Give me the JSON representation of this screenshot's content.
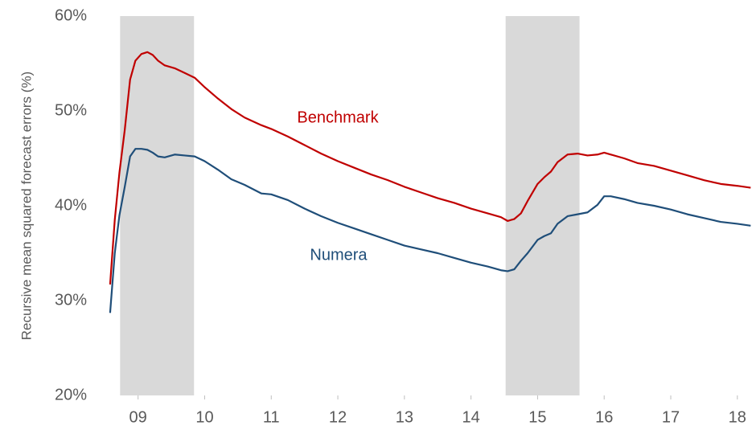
{
  "chart_data": {
    "type": "line",
    "y_label": "Recursive mean squared forecast errors (%)",
    "x": [
      8.58,
      8.65,
      8.72,
      8.8,
      8.88,
      8.96,
      9.05,
      9.14,
      9.22,
      9.3,
      9.4,
      9.55,
      9.7,
      9.85,
      10.0,
      10.2,
      10.4,
      10.6,
      10.85,
      11.0,
      11.25,
      11.5,
      11.75,
      12.0,
      12.25,
      12.5,
      12.75,
      13.0,
      13.25,
      13.5,
      13.75,
      14.0,
      14.25,
      14.45,
      14.55,
      14.65,
      14.75,
      14.85,
      15.0,
      15.1,
      15.2,
      15.3,
      15.45,
      15.6,
      15.75,
      15.9,
      16.0,
      16.1,
      16.3,
      16.5,
      16.75,
      17.0,
      17.25,
      17.5,
      17.75,
      18.0,
      18.2
    ],
    "series": [
      {
        "name": "Benchmark",
        "color": "#c00000",
        "values": [
          31.7,
          38.5,
          43.5,
          48,
          53.3,
          55.3,
          56,
          56.2,
          55.9,
          55.3,
          54.8,
          54.5,
          54,
          53.5,
          52.5,
          51.3,
          50.2,
          49.3,
          48.5,
          48.1,
          47.3,
          46.4,
          45.5,
          44.7,
          44,
          43.3,
          42.7,
          42,
          41.4,
          40.8,
          40.3,
          39.7,
          39.2,
          38.8,
          38.4,
          38.6,
          39.2,
          40.5,
          42.3,
          43,
          43.6,
          44.6,
          45.4,
          45.5,
          45.3,
          45.4,
          45.6,
          45.4,
          45,
          44.5,
          44.2,
          43.7,
          43.2,
          42.7,
          42.3,
          42.1,
          41.9
        ]
      },
      {
        "name": "Numera",
        "color": "#1f4e79",
        "values": [
          28.7,
          35,
          39,
          42,
          45.2,
          46,
          46,
          45.9,
          45.6,
          45.2,
          45.1,
          45.4,
          45.3,
          45.2,
          44.7,
          43.8,
          42.8,
          42.2,
          41.3,
          41.2,
          40.6,
          39.7,
          38.9,
          38.2,
          37.6,
          37,
          36.4,
          35.8,
          35.4,
          35,
          34.5,
          34,
          33.6,
          33.2,
          33.1,
          33.3,
          34.2,
          35,
          36.4,
          36.8,
          37.1,
          38.1,
          38.9,
          39.1,
          39.3,
          40.1,
          41,
          41,
          40.7,
          40.3,
          40,
          39.6,
          39.1,
          38.7,
          38.3,
          38.1,
          37.9
        ]
      }
    ],
    "shaded_regions": [
      [
        8.73,
        9.84
      ],
      [
        14.52,
        15.63
      ]
    ],
    "shade_color": "#d9d9d9",
    "xlim": [
      8.4,
      18.22
    ],
    "xticks": [
      {
        "value": 9,
        "label": "09"
      },
      {
        "value": 10,
        "label": "10"
      },
      {
        "value": 11,
        "label": "11"
      },
      {
        "value": 12,
        "label": "12"
      },
      {
        "value": 13,
        "label": "13"
      },
      {
        "value": 14,
        "label": "14"
      },
      {
        "value": 15,
        "label": "15"
      },
      {
        "value": 16,
        "label": "16"
      },
      {
        "value": 17,
        "label": "17"
      },
      {
        "value": 18,
        "label": "18"
      }
    ],
    "ylim": [
      20,
      60
    ],
    "yticks": [
      {
        "value": 20,
        "label": "20%"
      },
      {
        "value": 30,
        "label": "30%"
      },
      {
        "value": 40,
        "label": "40%"
      },
      {
        "value": 50,
        "label": "50%"
      },
      {
        "value": 60,
        "label": "60%"
      }
    ]
  }
}
